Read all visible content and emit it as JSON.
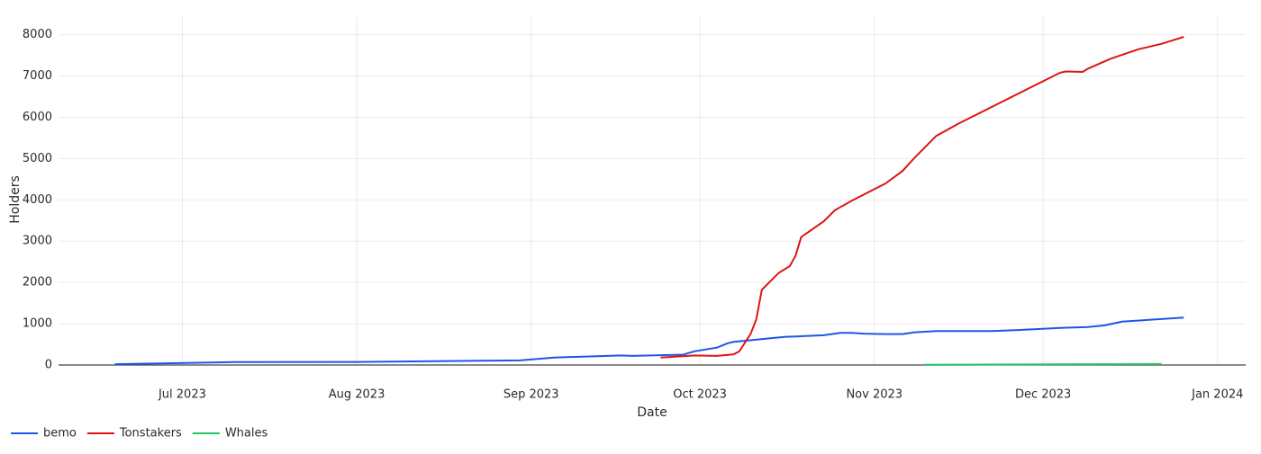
{
  "chart_data": {
    "type": "line",
    "x_label": "Date",
    "y_label": "Holders",
    "xlim": [
      "2023-06-09",
      "2024-01-06"
    ],
    "xticks": [
      {
        "value": "2023-07-01",
        "label": "Jul 2023"
      },
      {
        "value": "2023-08-01",
        "label": "Aug 2023"
      },
      {
        "value": "2023-09-01",
        "label": "Sep 2023"
      },
      {
        "value": "2023-10-01",
        "label": "Oct 2023"
      },
      {
        "value": "2023-11-01",
        "label": "Nov 2023"
      },
      {
        "value": "2023-12-01",
        "label": "Dec 2023"
      },
      {
        "value": "2024-01-01",
        "label": "Jan 2024"
      }
    ],
    "ylim": [
      0,
      8450
    ],
    "yticks": [
      0,
      1000,
      2000,
      3000,
      4000,
      5000,
      6000,
      7000,
      8000
    ],
    "grid": true,
    "legend": "bottom-left",
    "series": [
      {
        "name": "bemo",
        "color": "#1f55e6",
        "x": [
          "2023-06-19",
          "2023-07-10",
          "2023-08-01",
          "2023-08-30",
          "2023-09-05",
          "2023-09-17",
          "2023-09-19",
          "2023-09-28",
          "2023-09-30",
          "2023-10-04",
          "2023-10-06",
          "2023-10-07",
          "2023-10-16",
          "2023-10-23",
          "2023-10-26",
          "2023-10-28",
          "2023-10-30",
          "2023-11-03",
          "2023-11-06",
          "2023-11-08",
          "2023-11-12",
          "2023-11-22",
          "2023-11-27",
          "2023-12-04",
          "2023-12-09",
          "2023-12-12",
          "2023-12-15",
          "2023-12-26"
        ],
        "values": [
          20,
          70,
          75,
          110,
          180,
          230,
          220,
          250,
          330,
          420,
          530,
          560,
          680,
          720,
          780,
          780,
          760,
          750,
          750,
          790,
          820,
          820,
          850,
          900,
          920,
          960,
          1050,
          1150
        ]
      },
      {
        "name": "Tonstakers",
        "color": "#dc1515",
        "x": [
          "2023-09-24",
          "2023-09-30",
          "2023-10-04",
          "2023-10-07",
          "2023-10-08",
          "2023-10-10",
          "2023-10-11",
          "2023-10-12",
          "2023-10-15",
          "2023-10-17",
          "2023-10-18",
          "2023-10-19",
          "2023-10-23",
          "2023-10-25",
          "2023-10-28",
          "2023-11-03",
          "2023-11-06",
          "2023-11-08",
          "2023-11-12",
          "2023-11-16",
          "2023-12-04",
          "2023-12-05",
          "2023-12-08",
          "2023-12-09",
          "2023-12-13",
          "2023-12-18",
          "2023-12-22",
          "2023-12-26"
        ],
        "values": [
          180,
          230,
          220,
          260,
          330,
          750,
          1100,
          1820,
          2230,
          2400,
          2650,
          3100,
          3480,
          3750,
          3980,
          4400,
          4700,
          5000,
          5550,
          5850,
          7080,
          7110,
          7100,
          7180,
          7420,
          7650,
          7780,
          7950
        ]
      },
      {
        "name": "Whales",
        "color": "#22c55e",
        "x": [
          "2023-11-10",
          "2023-12-22"
        ],
        "values": [
          5,
          25
        ]
      }
    ]
  }
}
